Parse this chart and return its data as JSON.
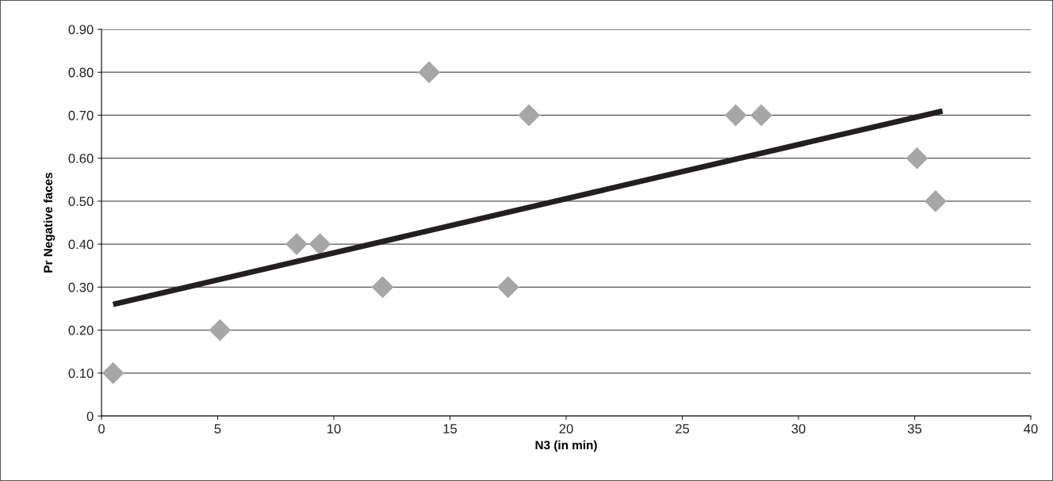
{
  "chart_data": {
    "type": "scatter",
    "xlabel": "N3 (in min)",
    "ylabel": "Pr Negative faces",
    "series": [
      {
        "color": "#a6a6a6",
        "marker": "diamond",
        "x": [
          0.5,
          5.1,
          8.4,
          9.4,
          12.1,
          14.1,
          17.5,
          18.4,
          27.3,
          28.4,
          35.1,
          35.9
        ],
        "values": [
          0.1,
          0.2,
          0.4,
          0.4,
          0.3,
          0.8,
          0.3,
          0.7,
          0.7,
          0.7,
          0.6,
          0.5
        ]
      },
      {
        "type": "line",
        "color": "#231f20",
        "marker": "none",
        "line_style": "solid",
        "x": [
          0.5,
          36.2
        ],
        "values": [
          0.26,
          0.71
        ]
      }
    ],
    "xlim": [
      0,
      40
    ],
    "xticks": [
      0,
      5,
      10,
      15,
      20,
      25,
      30,
      35,
      40
    ],
    "ylim": [
      0,
      0.9
    ],
    "yticks": [
      {
        "value": 0,
        "label": "0"
      },
      {
        "value": 0.1,
        "label": "0.10"
      },
      {
        "value": 0.2,
        "label": "0.20"
      },
      {
        "value": 0.3,
        "label": "0.30"
      },
      {
        "value": 0.4,
        "label": "0.40"
      },
      {
        "value": 0.5,
        "label": "0.50"
      },
      {
        "value": 0.6,
        "label": "0.60"
      },
      {
        "value": 0.7,
        "label": "0.70"
      },
      {
        "value": 0.8,
        "label": "0.80"
      },
      {
        "value": 0.9,
        "label": "0.90"
      }
    ],
    "grid": "y"
  }
}
